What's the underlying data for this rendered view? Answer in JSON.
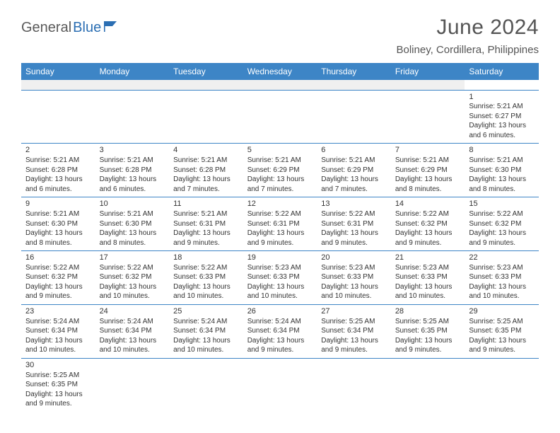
{
  "brand": {
    "part1": "General",
    "part2": "Blue"
  },
  "title": "June 2024",
  "location": "Boliney, Cordillera, Philippines",
  "colors": {
    "header_bg": "#3d85c6",
    "header_text": "#ffffff",
    "divider": "#3d85c6",
    "text": "#333333",
    "logo_gray": "#5a5a5a",
    "logo_blue": "#2c6fb3",
    "filler_bg": "#f0f0f0"
  },
  "weekdays": [
    "Sunday",
    "Monday",
    "Tuesday",
    "Wednesday",
    "Thursday",
    "Friday",
    "Saturday"
  ],
  "days": {
    "1": {
      "sunrise": "Sunrise: 5:21 AM",
      "sunset": "Sunset: 6:27 PM",
      "daylight1": "Daylight: 13 hours",
      "daylight2": "and 6 minutes."
    },
    "2": {
      "sunrise": "Sunrise: 5:21 AM",
      "sunset": "Sunset: 6:28 PM",
      "daylight1": "Daylight: 13 hours",
      "daylight2": "and 6 minutes."
    },
    "3": {
      "sunrise": "Sunrise: 5:21 AM",
      "sunset": "Sunset: 6:28 PM",
      "daylight1": "Daylight: 13 hours",
      "daylight2": "and 6 minutes."
    },
    "4": {
      "sunrise": "Sunrise: 5:21 AM",
      "sunset": "Sunset: 6:28 PM",
      "daylight1": "Daylight: 13 hours",
      "daylight2": "and 7 minutes."
    },
    "5": {
      "sunrise": "Sunrise: 5:21 AM",
      "sunset": "Sunset: 6:29 PM",
      "daylight1": "Daylight: 13 hours",
      "daylight2": "and 7 minutes."
    },
    "6": {
      "sunrise": "Sunrise: 5:21 AM",
      "sunset": "Sunset: 6:29 PM",
      "daylight1": "Daylight: 13 hours",
      "daylight2": "and 7 minutes."
    },
    "7": {
      "sunrise": "Sunrise: 5:21 AM",
      "sunset": "Sunset: 6:29 PM",
      "daylight1": "Daylight: 13 hours",
      "daylight2": "and 8 minutes."
    },
    "8": {
      "sunrise": "Sunrise: 5:21 AM",
      "sunset": "Sunset: 6:30 PM",
      "daylight1": "Daylight: 13 hours",
      "daylight2": "and 8 minutes."
    },
    "9": {
      "sunrise": "Sunrise: 5:21 AM",
      "sunset": "Sunset: 6:30 PM",
      "daylight1": "Daylight: 13 hours",
      "daylight2": "and 8 minutes."
    },
    "10": {
      "sunrise": "Sunrise: 5:21 AM",
      "sunset": "Sunset: 6:30 PM",
      "daylight1": "Daylight: 13 hours",
      "daylight2": "and 8 minutes."
    },
    "11": {
      "sunrise": "Sunrise: 5:21 AM",
      "sunset": "Sunset: 6:31 PM",
      "daylight1": "Daylight: 13 hours",
      "daylight2": "and 9 minutes."
    },
    "12": {
      "sunrise": "Sunrise: 5:22 AM",
      "sunset": "Sunset: 6:31 PM",
      "daylight1": "Daylight: 13 hours",
      "daylight2": "and 9 minutes."
    },
    "13": {
      "sunrise": "Sunrise: 5:22 AM",
      "sunset": "Sunset: 6:31 PM",
      "daylight1": "Daylight: 13 hours",
      "daylight2": "and 9 minutes."
    },
    "14": {
      "sunrise": "Sunrise: 5:22 AM",
      "sunset": "Sunset: 6:32 PM",
      "daylight1": "Daylight: 13 hours",
      "daylight2": "and 9 minutes."
    },
    "15": {
      "sunrise": "Sunrise: 5:22 AM",
      "sunset": "Sunset: 6:32 PM",
      "daylight1": "Daylight: 13 hours",
      "daylight2": "and 9 minutes."
    },
    "16": {
      "sunrise": "Sunrise: 5:22 AM",
      "sunset": "Sunset: 6:32 PM",
      "daylight1": "Daylight: 13 hours",
      "daylight2": "and 9 minutes."
    },
    "17": {
      "sunrise": "Sunrise: 5:22 AM",
      "sunset": "Sunset: 6:32 PM",
      "daylight1": "Daylight: 13 hours",
      "daylight2": "and 10 minutes."
    },
    "18": {
      "sunrise": "Sunrise: 5:22 AM",
      "sunset": "Sunset: 6:33 PM",
      "daylight1": "Daylight: 13 hours",
      "daylight2": "and 10 minutes."
    },
    "19": {
      "sunrise": "Sunrise: 5:23 AM",
      "sunset": "Sunset: 6:33 PM",
      "daylight1": "Daylight: 13 hours",
      "daylight2": "and 10 minutes."
    },
    "20": {
      "sunrise": "Sunrise: 5:23 AM",
      "sunset": "Sunset: 6:33 PM",
      "daylight1": "Daylight: 13 hours",
      "daylight2": "and 10 minutes."
    },
    "21": {
      "sunrise": "Sunrise: 5:23 AM",
      "sunset": "Sunset: 6:33 PM",
      "daylight1": "Daylight: 13 hours",
      "daylight2": "and 10 minutes."
    },
    "22": {
      "sunrise": "Sunrise: 5:23 AM",
      "sunset": "Sunset: 6:33 PM",
      "daylight1": "Daylight: 13 hours",
      "daylight2": "and 10 minutes."
    },
    "23": {
      "sunrise": "Sunrise: 5:24 AM",
      "sunset": "Sunset: 6:34 PM",
      "daylight1": "Daylight: 13 hours",
      "daylight2": "and 10 minutes."
    },
    "24": {
      "sunrise": "Sunrise: 5:24 AM",
      "sunset": "Sunset: 6:34 PM",
      "daylight1": "Daylight: 13 hours",
      "daylight2": "and 10 minutes."
    },
    "25": {
      "sunrise": "Sunrise: 5:24 AM",
      "sunset": "Sunset: 6:34 PM",
      "daylight1": "Daylight: 13 hours",
      "daylight2": "and 10 minutes."
    },
    "26": {
      "sunrise": "Sunrise: 5:24 AM",
      "sunset": "Sunset: 6:34 PM",
      "daylight1": "Daylight: 13 hours",
      "daylight2": "and 9 minutes."
    },
    "27": {
      "sunrise": "Sunrise: 5:25 AM",
      "sunset": "Sunset: 6:34 PM",
      "daylight1": "Daylight: 13 hours",
      "daylight2": "and 9 minutes."
    },
    "28": {
      "sunrise": "Sunrise: 5:25 AM",
      "sunset": "Sunset: 6:35 PM",
      "daylight1": "Daylight: 13 hours",
      "daylight2": "and 9 minutes."
    },
    "29": {
      "sunrise": "Sunrise: 5:25 AM",
      "sunset": "Sunset: 6:35 PM",
      "daylight1": "Daylight: 13 hours",
      "daylight2": "and 9 minutes."
    },
    "30": {
      "sunrise": "Sunrise: 5:25 AM",
      "sunset": "Sunset: 6:35 PM",
      "daylight1": "Daylight: 13 hours",
      "daylight2": "and 9 minutes."
    }
  },
  "grid": [
    [
      null,
      null,
      null,
      null,
      null,
      null,
      "1"
    ],
    [
      "2",
      "3",
      "4",
      "5",
      "6",
      "7",
      "8"
    ],
    [
      "9",
      "10",
      "11",
      "12",
      "13",
      "14",
      "15"
    ],
    [
      "16",
      "17",
      "18",
      "19",
      "20",
      "21",
      "22"
    ],
    [
      "23",
      "24",
      "25",
      "26",
      "27",
      "28",
      "29"
    ],
    [
      "30",
      null,
      null,
      null,
      null,
      null,
      null
    ]
  ]
}
